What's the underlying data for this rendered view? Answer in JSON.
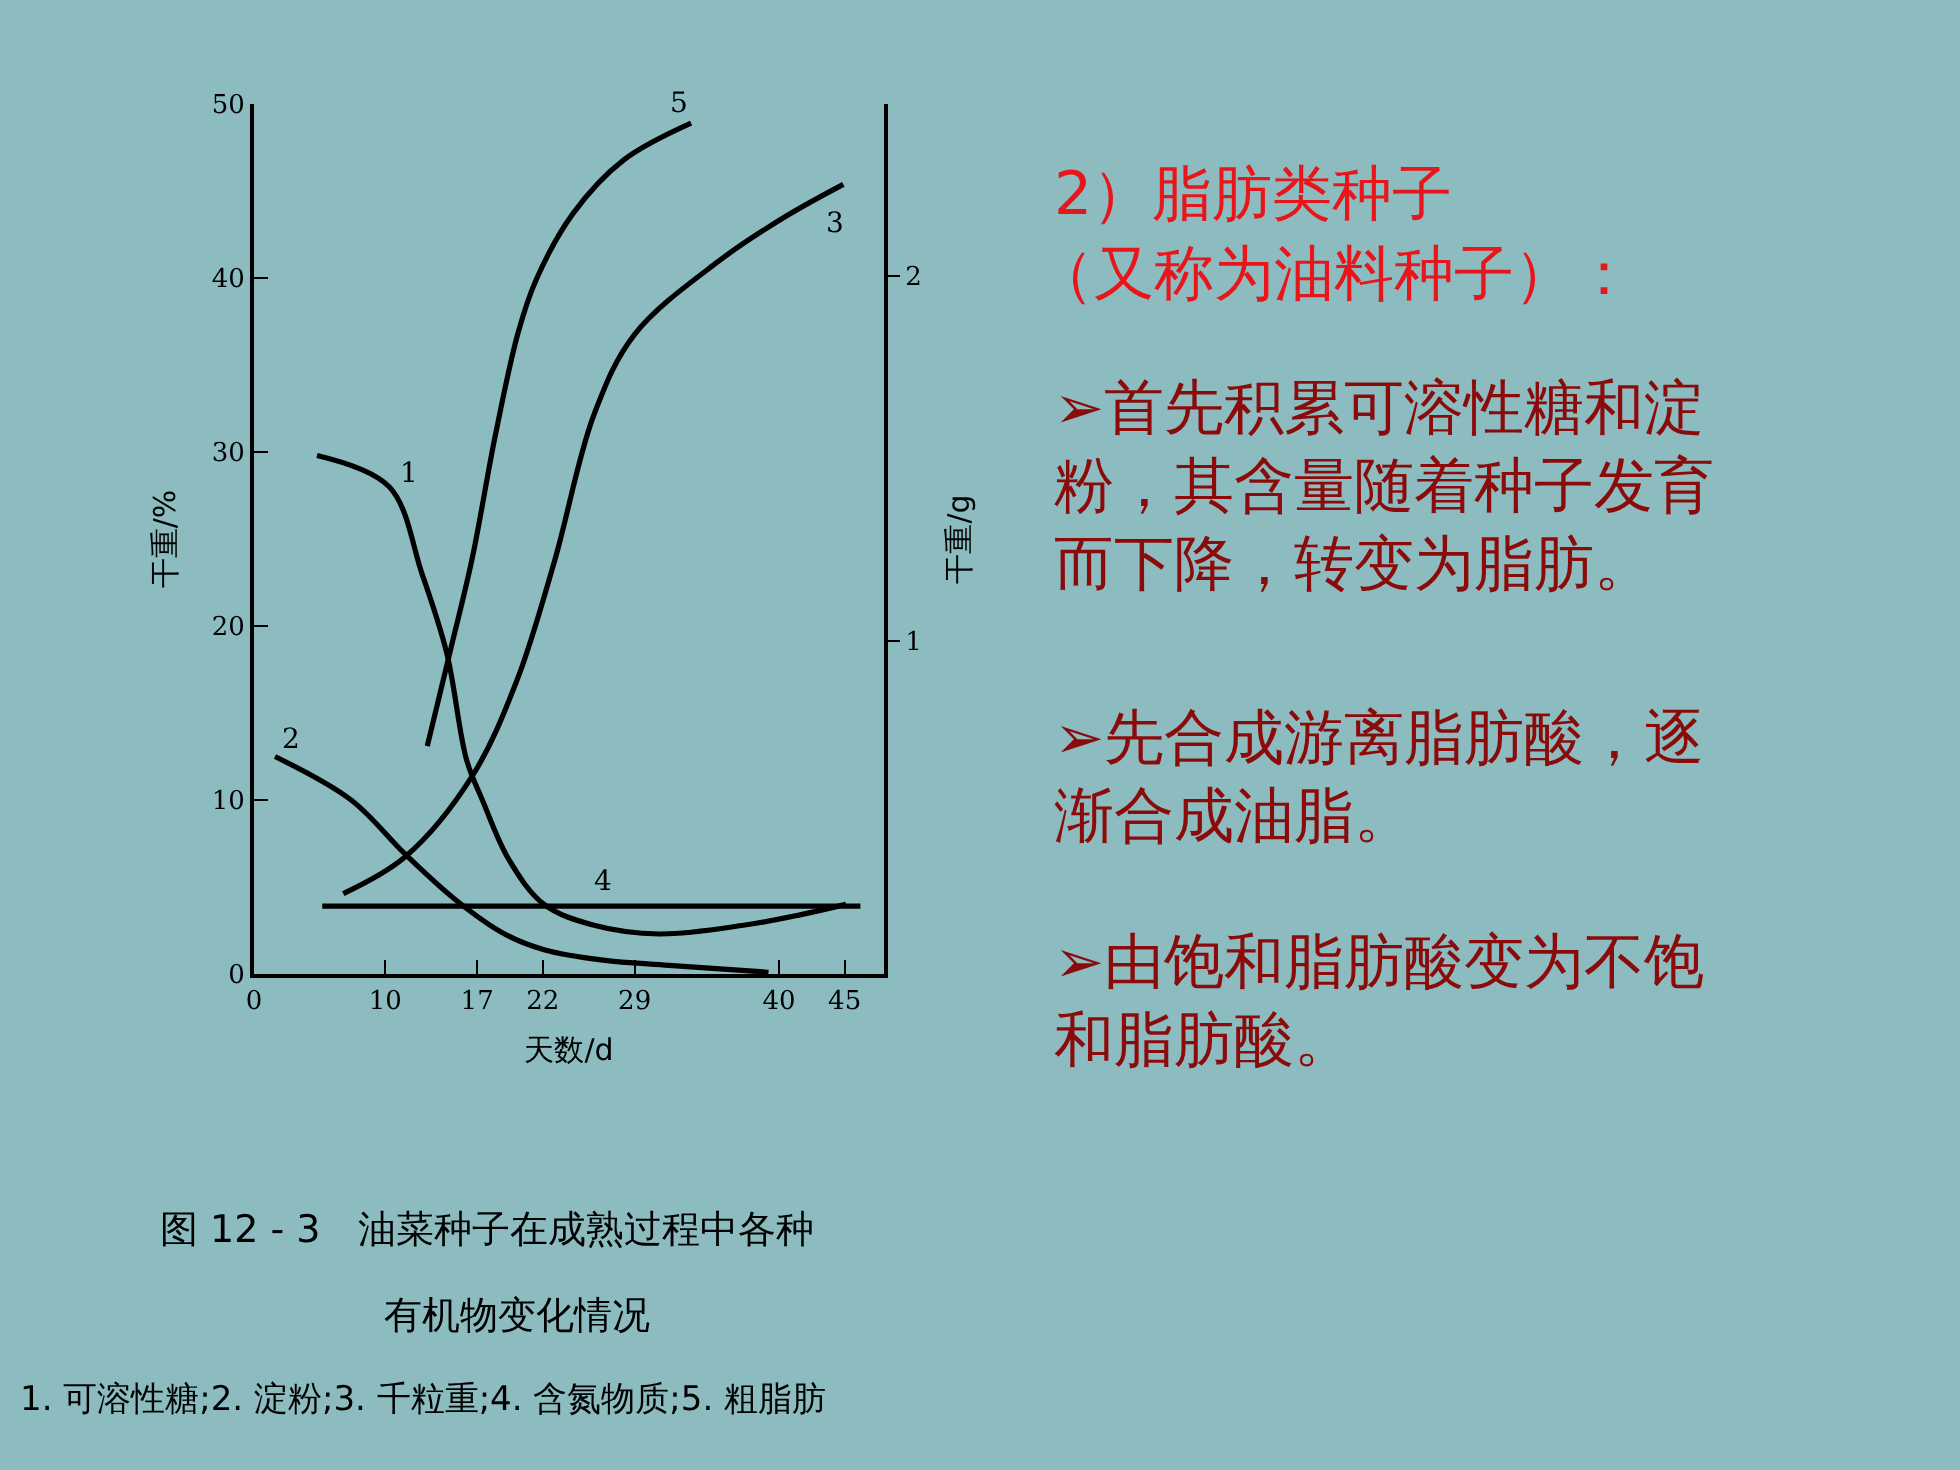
{
  "chart_data": {
    "type": "line",
    "xlabel": "天数/d",
    "ylabel": "干重/%",
    "y2label": "干重/g",
    "xlim": [
      0,
      48
    ],
    "xticks": [
      0,
      10,
      17,
      22,
      29,
      40,
      45
    ],
    "ylim": [
      0,
      50
    ],
    "yticks": [
      0,
      10,
      20,
      30,
      40,
      50
    ],
    "y2lim": [
      0.09,
      2.47
    ],
    "y2ticks": [
      1,
      2
    ],
    "grid": false,
    "legend": false,
    "marker": "none",
    "line_style": "solid",
    "series": [
      {
        "name": "1",
        "color": "#000000",
        "x": [
          4.8,
          10.3,
          12.8,
          14.7,
          16.2,
          17.4,
          19.4,
          22.1,
          25.9,
          30.9,
          37.3,
          41.6,
          45.1
        ],
        "values": [
          29.8,
          28,
          23,
          18.4,
          12.3,
          10,
          6.6,
          4.0,
          2.8,
          2.3,
          2.8,
          3.4,
          4.0
        ]
      },
      {
        "name": "2",
        "color": "#000000",
        "x": [
          1.6,
          7.4,
          11.5,
          15.3,
          19.1,
          22.1,
          26.6,
          31.6,
          39.2
        ],
        "values": [
          12.5,
          10,
          6.9,
          4.3,
          2.3,
          1.4,
          0.8,
          0.5,
          0.1
        ]
      },
      {
        "name": "3",
        "color": "#000000",
        "axis": "y2",
        "x": [
          6.8,
          11.5,
          16.6,
          20,
          22.9,
          25.9,
          29,
          35.4,
          40.4,
          44.9
        ],
        "values": [
          0.31,
          0.41,
          0.63,
          0.89,
          1.22,
          1.62,
          1.84,
          2.04,
          2.16,
          2.25
        ]
      },
      {
        "name": "4",
        "color": "#000000",
        "x": [
          5.2,
          25,
          46.2
        ],
        "values": [
          3.9,
          3.9,
          3.9
        ]
      },
      {
        "name": "5",
        "color": "#000000",
        "x": [
          13.2,
          14.9,
          16.6,
          18.4,
          20.1,
          21.5,
          24.3,
          28.2,
          33.3
        ],
        "values": [
          13.1,
          18.4,
          23.8,
          31,
          36.8,
          39.9,
          43.7,
          46.8,
          48.9
        ]
      }
    ],
    "annotations": [
      "2）脂肪类种子",
      "（又称为油料种子）：",
      "➢首先积累可溶性糖和淀粉，其含量随着种子发育而下降，转变为脂肪。",
      "➢先合成游离脂肪酸，逐渐合成油脂。",
      "➢由饱和脂肪酸变为不饱和脂肪酸。",
      "图 12 - 3　油菜种子在成熟过程中各种",
      "有机物变化情况",
      "1. 可溶性糖;2. 淀粉;3. 千粒重;4. 含氮物质;5. 粗脂肪"
    ]
  }
}
